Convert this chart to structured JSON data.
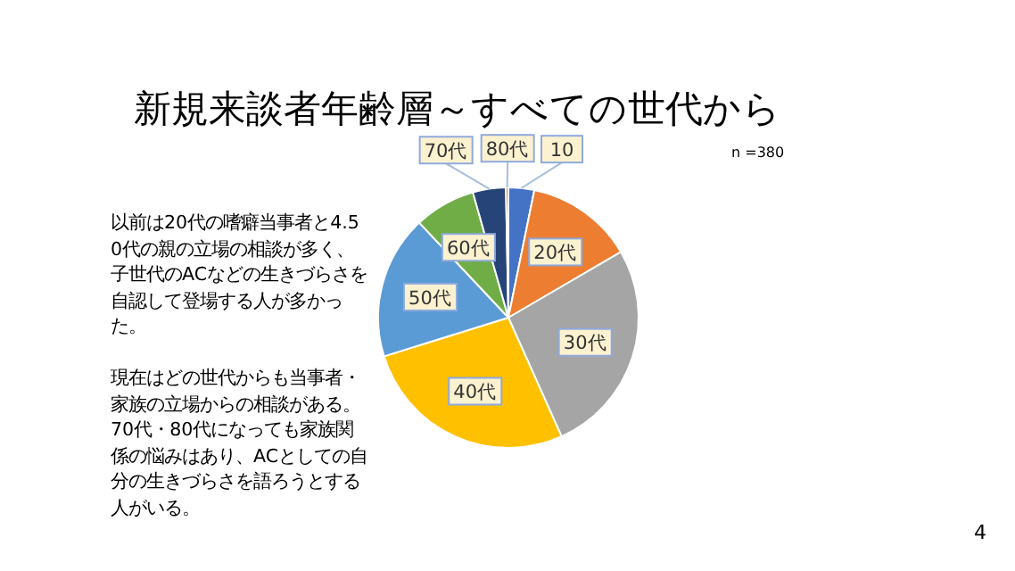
{
  "chart_data": {
    "type": "pie",
    "title": "新規来談者年齢層～すべての世代から",
    "categories": [
      "10",
      "20代",
      "30代",
      "40代",
      "50代",
      "60代",
      "70代",
      "80代"
    ],
    "values": [
      3.2,
      13.4,
      26.7,
      26.9,
      17.8,
      7.6,
      4.1,
      0.3
    ],
    "colors": [
      "#4472c4",
      "#ed7d31",
      "#a5a5a5",
      "#ffc000",
      "#5b9bd5",
      "#70ad47",
      "#264478",
      "#9e480e"
    ],
    "annotations": [
      "n =380",
      "以前は20代の嗜癖当事者と4.50代の親の立場の相談が多く、子世代のACなどの生きづらさを自認して登場する人が多かった。",
      "現在はどの世代からも当事者・家族の立場からの相談がある。",
      "70代・80代になっても家族関係の悩みはあり、ACとしての自分の生きづらさを語ろうとする人がいる。",
      "4"
    ]
  }
}
